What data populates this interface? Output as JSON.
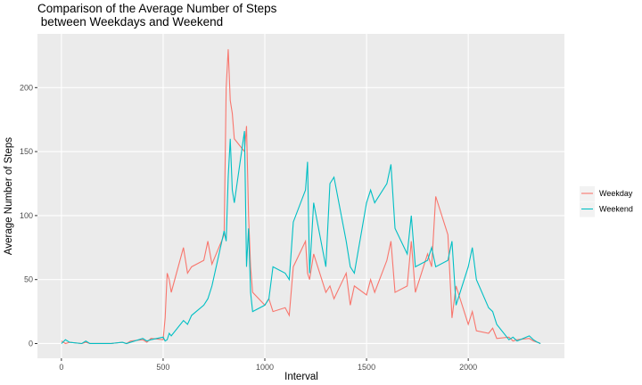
{
  "chart_data": {
    "type": "line",
    "title": "Comparison of the Average Number of Steps\n between Weekdays and Weekend",
    "x_label": "Interval",
    "y_label": "Average Number of Steps",
    "x": [
      0,
      20,
      40,
      100,
      120,
      140,
      200,
      220,
      240,
      300,
      320,
      340,
      400,
      420,
      440,
      500,
      510,
      520,
      530,
      540,
      600,
      620,
      640,
      700,
      720,
      740,
      800,
      810,
      820,
      830,
      840,
      850,
      900,
      910,
      920,
      930,
      940,
      1000,
      1020,
      1040,
      1100,
      1120,
      1140,
      1200,
      1210,
      1220,
      1240,
      1300,
      1320,
      1340,
      1400,
      1420,
      1440,
      1500,
      1520,
      1540,
      1600,
      1620,
      1640,
      1700,
      1720,
      1740,
      1800,
      1820,
      1840,
      1900,
      1920,
      1940,
      2000,
      2020,
      2040,
      2100,
      2120,
      2140,
      2200,
      2220,
      2240,
      2300,
      2320,
      2340,
      2355
    ],
    "series": [
      {
        "name": "Weekday",
        "color": "#F8766D",
        "values": [
          2,
          0,
          1,
          0,
          1,
          0,
          0,
          0,
          0,
          1,
          0,
          2,
          3,
          1,
          4,
          3,
          20,
          55,
          50,
          40,
          75,
          55,
          60,
          65,
          80,
          62,
          85,
          200,
          230,
          190,
          180,
          160,
          150,
          170,
          100,
          60,
          40,
          30,
          35,
          25,
          28,
          22,
          60,
          80,
          55,
          50,
          70,
          40,
          45,
          35,
          55,
          30,
          45,
          38,
          50,
          40,
          65,
          80,
          40,
          45,
          80,
          40,
          70,
          60,
          115,
          85,
          20,
          45,
          15,
          25,
          10,
          8,
          12,
          4,
          5,
          2,
          3,
          4,
          2,
          1,
          0
        ]
      },
      {
        "name": "Weekend",
        "color": "#00BFC4",
        "values": [
          0,
          3,
          1,
          0,
          2,
          0,
          0,
          0,
          0,
          1,
          0,
          1,
          4,
          2,
          3,
          5,
          2,
          3,
          8,
          6,
          18,
          15,
          22,
          30,
          35,
          45,
          88,
          80,
          130,
          160,
          120,
          110,
          166,
          60,
          90,
          40,
          25,
          30,
          35,
          60,
          55,
          50,
          95,
          120,
          142,
          55,
          110,
          60,
          125,
          130,
          80,
          60,
          55,
          110,
          120,
          110,
          125,
          140,
          90,
          70,
          100,
          60,
          65,
          75,
          60,
          65,
          80,
          30,
          60,
          75,
          50,
          28,
          25,
          15,
          3,
          5,
          2,
          6,
          3,
          1,
          0
        ]
      }
    ],
    "xlim": [
      -117.75,
      2472.75
    ],
    "ylim": [
      -11.5,
      242
    ],
    "xticks": [
      0,
      500,
      1000,
      1500,
      2000
    ],
    "yticks": [
      0,
      50,
      100,
      150,
      200
    ],
    "grid": true,
    "legend_position": "right"
  }
}
